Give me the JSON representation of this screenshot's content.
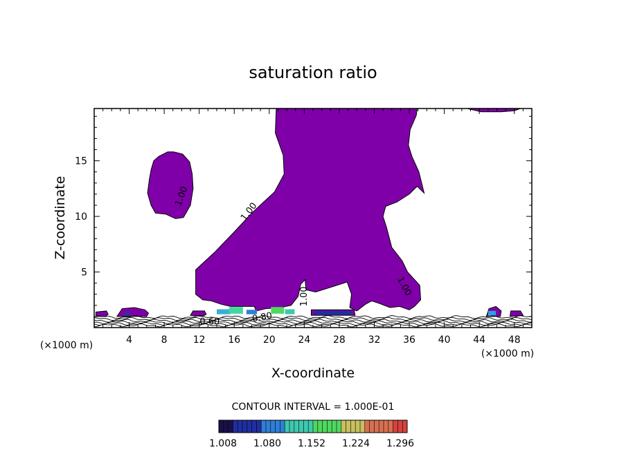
{
  "chart_data": {
    "type": "contour",
    "title": "saturation ratio",
    "xlabel": "X-coordinate",
    "ylabel": "Z-coordinate",
    "x_unit": "(×1000 m)",
    "x_unit_right": "(×1000 m)",
    "xlim": [
      0,
      50
    ],
    "ylim": [
      0,
      19.7
    ],
    "x_ticks": [
      4,
      8,
      12,
      16,
      20,
      24,
      28,
      32,
      36,
      40,
      44,
      48
    ],
    "y_ticks": [
      5,
      10,
      15
    ],
    "contour_interval_text": "CONTOUR INTERVAL = 1.000E-01",
    "contour_labels": [
      {
        "text": "1.00",
        "x": 10.0,
        "y": 11.8,
        "angle": -70
      },
      {
        "text": "1.00",
        "x": 17.7,
        "y": 10.4,
        "angle": -52
      },
      {
        "text": "1.00",
        "x": 24.0,
        "y": 2.8,
        "angle": -90
      },
      {
        "text": "1.00",
        "x": 35.4,
        "y": 3.7,
        "angle": 62
      },
      {
        "text": "0.60",
        "x": 13.2,
        "y": 0.5,
        "angle": 0
      },
      {
        "text": "0.80",
        "x": 19.2,
        "y": 0.9,
        "angle": -10
      }
    ],
    "colorbar": {
      "ticks": [
        "1.008",
        "1.080",
        "1.152",
        "1.224",
        "1.296"
      ],
      "colors": [
        "#1a0f4a",
        "#1f2fa0",
        "#2f7fd8",
        "#3fc8b0",
        "#4fd860",
        "#c8c060",
        "#d87050",
        "#d84040"
      ]
    },
    "fill_color": "#7f00a8",
    "regions": [
      {
        "name": "main-plume",
        "points": [
          [
            20.8,
            19.7
          ],
          [
            20.7,
            17.5
          ],
          [
            21.6,
            15.5
          ],
          [
            21.7,
            13.8
          ],
          [
            20.6,
            12.2
          ],
          [
            18.0,
            10.3
          ],
          [
            16.0,
            8.6
          ],
          [
            13.8,
            6.8
          ],
          [
            11.6,
            5.2
          ],
          [
            11.6,
            3.0
          ],
          [
            12.4,
            2.5
          ],
          [
            13.4,
            2.4
          ],
          [
            14.5,
            2.1
          ],
          [
            15.6,
            1.9
          ],
          [
            17.2,
            1.9
          ],
          [
            18.3,
            1.9
          ],
          [
            18.5,
            1.5
          ],
          [
            19.6,
            1.7
          ],
          [
            21.3,
            1.8
          ],
          [
            22.5,
            2.0
          ],
          [
            23.3,
            2.8
          ],
          [
            23.6,
            3.9
          ],
          [
            24.1,
            4.3
          ],
          [
            24.2,
            3.4
          ],
          [
            25.3,
            3.2
          ],
          [
            27.3,
            3.7
          ],
          [
            28.9,
            4.1
          ],
          [
            29.4,
            3.0
          ],
          [
            29.2,
            1.8
          ],
          [
            30.0,
            1.5
          ],
          [
            31.0,
            2.1
          ],
          [
            31.7,
            2.4
          ],
          [
            32.5,
            2.2
          ],
          [
            33.8,
            1.8
          ],
          [
            34.9,
            1.9
          ],
          [
            36.0,
            1.6
          ],
          [
            36.6,
            1.9
          ],
          [
            37.3,
            2.5
          ],
          [
            37.2,
            3.8
          ],
          [
            36.5,
            4.4
          ],
          [
            35.8,
            5.0
          ],
          [
            35.2,
            6.0
          ],
          [
            34.0,
            7.2
          ],
          [
            33.4,
            9.0
          ],
          [
            33.0,
            10.0
          ],
          [
            33.3,
            10.9
          ],
          [
            34.6,
            11.3
          ],
          [
            36.0,
            12.0
          ],
          [
            36.9,
            12.7
          ],
          [
            37.7,
            12.1
          ],
          [
            37.1,
            14.0
          ],
          [
            36.3,
            15.4
          ],
          [
            35.9,
            16.4
          ],
          [
            36.1,
            17.8
          ],
          [
            36.8,
            19.1
          ],
          [
            36.9,
            19.7
          ]
        ]
      },
      {
        "name": "upper-left-blob",
        "points": [
          [
            9.1,
            15.8
          ],
          [
            10.1,
            15.6
          ],
          [
            10.9,
            14.9
          ],
          [
            11.2,
            13.8
          ],
          [
            11.3,
            12.5
          ],
          [
            11.0,
            11.0
          ],
          [
            10.2,
            9.9
          ],
          [
            9.3,
            9.8
          ],
          [
            8.2,
            10.2
          ],
          [
            7.0,
            10.3
          ],
          [
            6.5,
            11.0
          ],
          [
            6.1,
            12.1
          ],
          [
            6.3,
            13.3
          ],
          [
            6.5,
            14.2
          ],
          [
            6.8,
            15.0
          ],
          [
            7.4,
            15.4
          ],
          [
            8.4,
            15.8
          ]
        ]
      },
      {
        "name": "top-right-strip",
        "points": [
          [
            42.6,
            19.7
          ],
          [
            44.2,
            19.4
          ],
          [
            46.5,
            19.4
          ],
          [
            48.0,
            19.5
          ],
          [
            48.7,
            19.7
          ]
        ]
      },
      {
        "name": "low-blob-4km",
        "points": [
          [
            2.6,
            1.0
          ],
          [
            3.2,
            1.7
          ],
          [
            4.6,
            1.8
          ],
          [
            5.8,
            1.6
          ],
          [
            6.2,
            1.3
          ],
          [
            6.0,
            1.0
          ],
          [
            3.5,
            1.0
          ]
        ]
      },
      {
        "name": "low-strip-0km",
        "points": [
          [
            0.2,
            1.0
          ],
          [
            0.2,
            1.4
          ],
          [
            1.4,
            1.5
          ],
          [
            1.6,
            1.2
          ],
          [
            1.3,
            1.0
          ]
        ]
      },
      {
        "name": "low-strip-13km",
        "points": [
          [
            11.0,
            1.1
          ],
          [
            11.3,
            1.5
          ],
          [
            12.6,
            1.5
          ],
          [
            12.8,
            1.2
          ],
          [
            12.4,
            1.0
          ]
        ]
      },
      {
        "name": "low-strip-26km",
        "points": [
          [
            24.8,
            1.1
          ],
          [
            24.8,
            1.6
          ],
          [
            29.7,
            1.6
          ],
          [
            29.8,
            1.1
          ]
        ]
      },
      {
        "name": "low-blob-45km",
        "points": [
          [
            44.8,
            1.0
          ],
          [
            45.1,
            1.7
          ],
          [
            45.9,
            1.9
          ],
          [
            46.5,
            1.5
          ],
          [
            46.4,
            1.0
          ]
        ]
      },
      {
        "name": "low-blob-48km",
        "points": [
          [
            47.5,
            1.0
          ],
          [
            47.6,
            1.5
          ],
          [
            48.7,
            1.5
          ],
          [
            49.0,
            1.1
          ]
        ]
      }
    ],
    "color_patches": [
      {
        "x": 14.0,
        "y": 1.2,
        "w": 1.6,
        "h": 0.45,
        "color": "#3ab0d0"
      },
      {
        "x": 15.4,
        "y": 1.25,
        "w": 1.6,
        "h": 0.6,
        "color": "#40d8a0"
      },
      {
        "x": 17.4,
        "y": 1.2,
        "w": 1.2,
        "h": 0.4,
        "color": "#2f7fd8"
      },
      {
        "x": 20.2,
        "y": 1.25,
        "w": 1.5,
        "h": 0.6,
        "color": "#4fd860"
      },
      {
        "x": 21.8,
        "y": 1.2,
        "w": 1.1,
        "h": 0.45,
        "color": "#3fc8b0"
      },
      {
        "x": 25.2,
        "y": 1.15,
        "w": 4.2,
        "h": 0.35,
        "color": "#1f2fa0"
      },
      {
        "x": 45.0,
        "y": 1.05,
        "w": 0.9,
        "h": 0.45,
        "color": "#2f9fe8"
      },
      {
        "x": 3.4,
        "y": 1.05,
        "w": 0.8,
        "h": 0.3,
        "color": "#2f2fa0"
      }
    ]
  }
}
